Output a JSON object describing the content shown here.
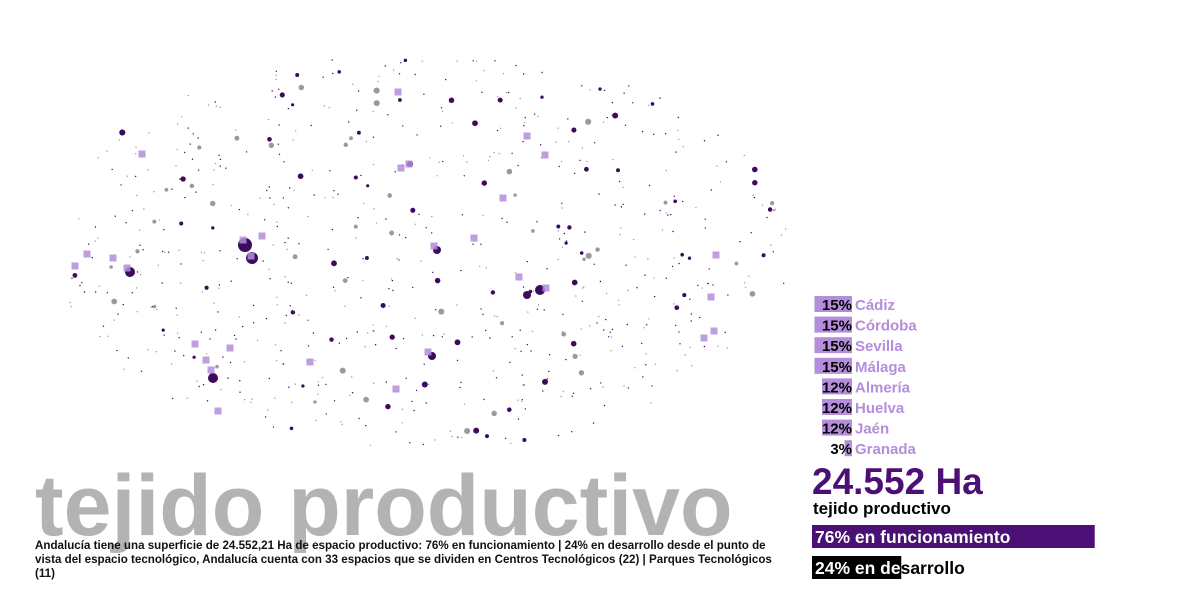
{
  "headline": "tejido productivo",
  "description": "Andalucía tiene una superficie de 24.552,21 Ha de espacio productivo: 76% en funcionamiento | 24% en desarrollo desde el punto de vista del espacio tecnológico, Andalucía cuenta con 33 espacios que se dividen en Centros Tecnológicos (22) | Parques Tecnológicos (11)",
  "provinces": [
    {
      "name": "Cádiz",
      "value": 15,
      "label": "15%"
    },
    {
      "name": "Córdoba",
      "value": 15,
      "label": "15%"
    },
    {
      "name": "Sevilla",
      "value": 15,
      "label": "15%"
    },
    {
      "name": "Málaga",
      "value": 15,
      "label": "15%"
    },
    {
      "name": "Almería",
      "value": 12,
      "label": "12%"
    },
    {
      "name": "Huelva",
      "value": 12,
      "label": "12%"
    },
    {
      "name": "Jaén",
      "value": 12,
      "label": "12%"
    },
    {
      "name": "Granada",
      "value": 3,
      "label": "3%"
    }
  ],
  "total": {
    "figure": "24.552 Ha",
    "caption": "tejido productivo"
  },
  "status": [
    {
      "value": 76,
      "label": "76% en funcionamiento",
      "color": "#4b0f75"
    },
    {
      "value": 24,
      "label": "24% en desarrollo",
      "color": "#000000"
    }
  ]
}
